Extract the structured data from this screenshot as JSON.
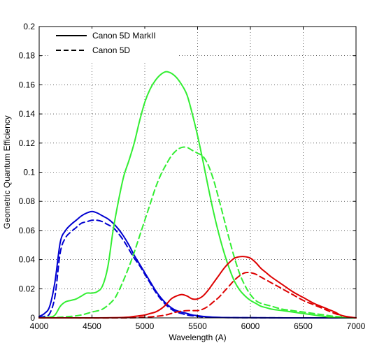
{
  "chart_data": {
    "type": "line",
    "xlabel": "Wavelength (A)",
    "ylabel": "Geometric Quantum Efficiency",
    "xlim": [
      4000,
      7000
    ],
    "ylim": [
      0,
      0.2
    ],
    "xticks": [
      "4000",
      "4500",
      "5000",
      "5500",
      "6000",
      "6500",
      "7000"
    ],
    "yticks": [
      "0",
      "0.02",
      "0.04",
      "0.06",
      "0.08",
      "0.1",
      "0.12",
      "0.14",
      "0.16",
      "0.18",
      "0.2"
    ],
    "grid": true,
    "legend": {
      "placement": "top-left",
      "entries": [
        {
          "label": "Canon 5D MarkII",
          "style": "solid"
        },
        {
          "label": "Canon 5D",
          "style": "dashed"
        }
      ]
    },
    "colors": {
      "blue": "#0000d0",
      "green": "#33ee33",
      "red": "#dd0000"
    },
    "series": [
      {
        "color": "blue",
        "style": "solid",
        "x": [
          4000,
          4050,
          4100,
          4150,
          4200,
          4250,
          4300,
          4350,
          4400,
          4450,
          4500,
          4550,
          4600,
          4650,
          4700,
          4750,
          4800,
          4850,
          4900,
          4950,
          5000,
          5050,
          5100,
          5150,
          5200,
          5250,
          5300,
          5350,
          5400,
          5450,
          5500,
          5550,
          5600,
          5650,
          5700,
          5800,
          6000,
          6500,
          7000
        ],
        "y": [
          0.001,
          0.003,
          0.008,
          0.025,
          0.052,
          0.06,
          0.064,
          0.067,
          0.07,
          0.072,
          0.073,
          0.072,
          0.07,
          0.068,
          0.065,
          0.061,
          0.056,
          0.05,
          0.043,
          0.037,
          0.031,
          0.025,
          0.019,
          0.014,
          0.01,
          0.007,
          0.005,
          0.004,
          0.003,
          0.002,
          0.0015,
          0.001,
          0.0007,
          0.0005,
          0.0003,
          0.0002,
          0.0001,
          0,
          0
        ]
      },
      {
        "color": "blue",
        "style": "dashed",
        "x": [
          4000,
          4050,
          4100,
          4150,
          4200,
          4250,
          4300,
          4350,
          4400,
          4450,
          4500,
          4550,
          4600,
          4650,
          4700,
          4750,
          4800,
          4850,
          4900,
          4950,
          5000,
          5050,
          5100,
          5150,
          5200,
          5250,
          5300,
          5350,
          5400,
          5500,
          5600,
          5800,
          6000,
          6500,
          7000
        ],
        "y": [
          0.0005,
          0.001,
          0.003,
          0.015,
          0.045,
          0.055,
          0.059,
          0.062,
          0.065,
          0.066,
          0.067,
          0.067,
          0.066,
          0.064,
          0.062,
          0.058,
          0.053,
          0.047,
          0.041,
          0.036,
          0.03,
          0.024,
          0.018,
          0.013,
          0.009,
          0.006,
          0.004,
          0.003,
          0.002,
          0.001,
          0.0005,
          0.0002,
          0.0001,
          0,
          0
        ]
      },
      {
        "color": "green",
        "style": "solid",
        "x": [
          4000,
          4100,
          4150,
          4200,
          4250,
          4300,
          4350,
          4400,
          4450,
          4500,
          4550,
          4600,
          4650,
          4700,
          4750,
          4800,
          4850,
          4900,
          4950,
          5000,
          5050,
          5100,
          5150,
          5200,
          5250,
          5300,
          5350,
          5400,
          5450,
          5500,
          5550,
          5600,
          5650,
          5700,
          5750,
          5800,
          5850,
          5900,
          5950,
          6000,
          6050,
          6100,
          6150,
          6200,
          6300,
          6400,
          6500,
          6600,
          6700,
          6800,
          6900,
          7000
        ],
        "y": [
          0,
          0.0005,
          0.002,
          0.008,
          0.011,
          0.012,
          0.013,
          0.015,
          0.017,
          0.017,
          0.018,
          0.022,
          0.035,
          0.06,
          0.08,
          0.097,
          0.108,
          0.12,
          0.135,
          0.148,
          0.157,
          0.163,
          0.167,
          0.169,
          0.168,
          0.165,
          0.16,
          0.153,
          0.14,
          0.125,
          0.108,
          0.09,
          0.073,
          0.058,
          0.045,
          0.034,
          0.025,
          0.019,
          0.015,
          0.012,
          0.01,
          0.008,
          0.007,
          0.006,
          0.005,
          0.004,
          0.003,
          0.002,
          0.001,
          0.0003,
          0.0001,
          0
        ]
      },
      {
        "color": "green",
        "style": "dashed",
        "x": [
          4000,
          4100,
          4200,
          4300,
          4400,
          4500,
          4600,
          4700,
          4750,
          4800,
          4850,
          4900,
          4950,
          5000,
          5050,
          5100,
          5150,
          5200,
          5250,
          5300,
          5350,
          5400,
          5450,
          5500,
          5550,
          5600,
          5650,
          5700,
          5750,
          5800,
          5850,
          5900,
          5950,
          6000,
          6050,
          6100,
          6200,
          6300,
          6400,
          6500,
          6600,
          6700,
          6800,
          7000
        ],
        "y": [
          0,
          0,
          0.0005,
          0.001,
          0.002,
          0.004,
          0.006,
          0.012,
          0.018,
          0.026,
          0.035,
          0.045,
          0.056,
          0.067,
          0.078,
          0.089,
          0.098,
          0.105,
          0.111,
          0.115,
          0.117,
          0.117,
          0.115,
          0.113,
          0.111,
          0.105,
          0.095,
          0.082,
          0.068,
          0.054,
          0.041,
          0.03,
          0.022,
          0.016,
          0.012,
          0.01,
          0.008,
          0.006,
          0.005,
          0.004,
          0.003,
          0.002,
          0.001,
          0
        ]
      },
      {
        "color": "red",
        "style": "solid",
        "x": [
          4000,
          4500,
          4800,
          4900,
          5000,
          5050,
          5100,
          5150,
          5200,
          5250,
          5300,
          5350,
          5400,
          5450,
          5500,
          5550,
          5600,
          5650,
          5700,
          5750,
          5800,
          5850,
          5900,
          5950,
          6000,
          6050,
          6100,
          6150,
          6200,
          6300,
          6400,
          6500,
          6600,
          6700,
          6800,
          6850,
          6900,
          7000
        ],
        "y": [
          0,
          0,
          0.0003,
          0.001,
          0.002,
          0.003,
          0.004,
          0.006,
          0.009,
          0.013,
          0.015,
          0.016,
          0.015,
          0.013,
          0.013,
          0.015,
          0.019,
          0.024,
          0.029,
          0.034,
          0.038,
          0.041,
          0.042,
          0.042,
          0.041,
          0.038,
          0.034,
          0.031,
          0.028,
          0.023,
          0.018,
          0.014,
          0.01,
          0.007,
          0.004,
          0.002,
          0.001,
          0
        ]
      },
      {
        "color": "red",
        "style": "dashed",
        "x": [
          4000,
          4800,
          5000,
          5100,
          5200,
          5300,
          5400,
          5500,
          5550,
          5600,
          5650,
          5700,
          5750,
          5800,
          5850,
          5900,
          5950,
          6000,
          6050,
          6100,
          6200,
          6300,
          6400,
          6500,
          6600,
          6700,
          6800,
          6900,
          7000
        ],
        "y": [
          0,
          0,
          0.0005,
          0.001,
          0.002,
          0.004,
          0.005,
          0.005,
          0.006,
          0.008,
          0.011,
          0.014,
          0.018,
          0.022,
          0.026,
          0.029,
          0.031,
          0.031,
          0.03,
          0.028,
          0.024,
          0.02,
          0.016,
          0.012,
          0.009,
          0.006,
          0.003,
          0.001,
          0
        ]
      }
    ]
  }
}
